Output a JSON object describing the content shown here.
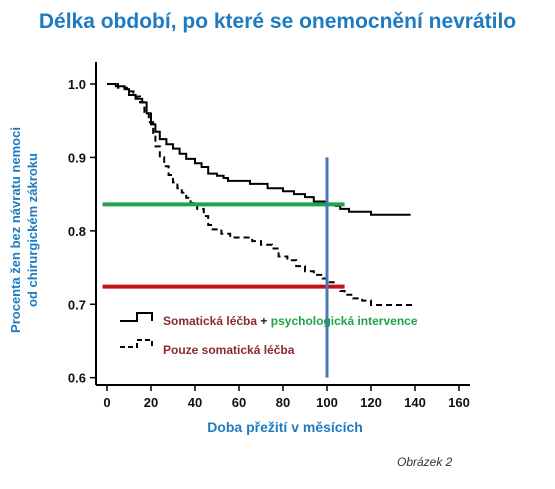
{
  "title": "Délka období, po které se onemocnění nevrátilo",
  "caption": "Obrázek 2",
  "colors": {
    "title": "#1F7BC0",
    "green_line": "#1EA34A",
    "red_line": "#C0141A",
    "blue_line": "#4A78B5",
    "legend_red": "#8B2A2A",
    "legend_green": "#1EA34A"
  },
  "legend": {
    "series1_part1": "Somatická léčba",
    "series1_plus": "+",
    "series1_part2": "psychologická intervence",
    "series2": "Pouze somatická léčba"
  },
  "chart_data": {
    "type": "line",
    "title": "Délka období, po které se onemocnění nevrátilo",
    "xlabel": "Doba přežití v měsících",
    "ylabel_line1": "Procenta žen bez návratu nemoci",
    "ylabel_line2": "od chirurgickém zákroku",
    "xlim": [
      -5,
      165
    ],
    "ylim": [
      0.59,
      1.03
    ],
    "xticks": [
      "0",
      "20",
      "40",
      "60",
      "80",
      "100",
      "120",
      "140",
      "160"
    ],
    "yticks": [
      "0.6",
      "0.7",
      "0.8",
      "0.9",
      "1.0"
    ],
    "xtick_values": [
      0,
      20,
      40,
      60,
      80,
      100,
      120,
      140,
      160
    ],
    "ytick_values": [
      0.6,
      0.7,
      0.8,
      0.9,
      1.0
    ],
    "series": [
      {
        "name": "Somatická léčba + psychologická intervence",
        "style": "solid",
        "points": [
          [
            0,
            1.0
          ],
          [
            4,
            0.997
          ],
          [
            8,
            0.993
          ],
          [
            10,
            0.985
          ],
          [
            13,
            0.98
          ],
          [
            16,
            0.975
          ],
          [
            18,
            0.96
          ],
          [
            20,
            0.945
          ],
          [
            22,
            0.935
          ],
          [
            24,
            0.925
          ],
          [
            27,
            0.918
          ],
          [
            30,
            0.912
          ],
          [
            33,
            0.905
          ],
          [
            36,
            0.898
          ],
          [
            40,
            0.892
          ],
          [
            43,
            0.887
          ],
          [
            46,
            0.878
          ],
          [
            50,
            0.875
          ],
          [
            53,
            0.872
          ],
          [
            55,
            0.868
          ],
          [
            60,
            0.868
          ],
          [
            65,
            0.864
          ],
          [
            70,
            0.864
          ],
          [
            73,
            0.858
          ],
          [
            80,
            0.854
          ],
          [
            85,
            0.85
          ],
          [
            90,
            0.846
          ],
          [
            94,
            0.84
          ],
          [
            100,
            0.836
          ],
          [
            104,
            0.834
          ],
          [
            106,
            0.83
          ],
          [
            110,
            0.826
          ],
          [
            118,
            0.826
          ],
          [
            120,
            0.822
          ],
          [
            130,
            0.822
          ],
          [
            138,
            0.822
          ]
        ]
      },
      {
        "name": "Pouze somatická léčba",
        "style": "dashed",
        "points": [
          [
            0,
            1.0
          ],
          [
            5,
            0.995
          ],
          [
            9,
            0.99
          ],
          [
            12,
            0.983
          ],
          [
            15,
            0.975
          ],
          [
            17,
            0.962
          ],
          [
            19,
            0.948
          ],
          [
            21,
            0.93
          ],
          [
            22,
            0.915
          ],
          [
            24,
            0.9
          ],
          [
            26,
            0.888
          ],
          [
            28,
            0.876
          ],
          [
            30,
            0.866
          ],
          [
            32,
            0.858
          ],
          [
            34,
            0.852
          ],
          [
            36,
            0.845
          ],
          [
            38,
            0.838
          ],
          [
            41,
            0.83
          ],
          [
            44,
            0.82
          ],
          [
            46,
            0.808
          ],
          [
            48,
            0.802
          ],
          [
            52,
            0.796
          ],
          [
            56,
            0.791
          ],
          [
            60,
            0.791
          ],
          [
            66,
            0.786
          ],
          [
            70,
            0.781
          ],
          [
            75,
            0.776
          ],
          [
            78,
            0.765
          ],
          [
            82,
            0.76
          ],
          [
            86,
            0.752
          ],
          [
            90,
            0.745
          ],
          [
            94,
            0.74
          ],
          [
            98,
            0.735
          ],
          [
            100,
            0.73
          ],
          [
            103,
            0.725
          ],
          [
            106,
            0.718
          ],
          [
            108,
            0.713
          ],
          [
            112,
            0.708
          ],
          [
            116,
            0.705
          ],
          [
            120,
            0.699
          ],
          [
            130,
            0.699
          ],
          [
            140,
            0.699
          ]
        ]
      }
    ],
    "reference_lines": [
      {
        "orientation": "horizontal",
        "y": 0.836,
        "x_from": -2,
        "x_to": 108,
        "color": "green"
      },
      {
        "orientation": "horizontal",
        "y": 0.724,
        "x_from": -2,
        "x_to": 108,
        "color": "red"
      },
      {
        "orientation": "vertical",
        "x": 100,
        "y_from": 0.6,
        "y_to": 0.9,
        "color": "blue"
      }
    ],
    "grid": false,
    "legend_position": "bottom-center"
  }
}
